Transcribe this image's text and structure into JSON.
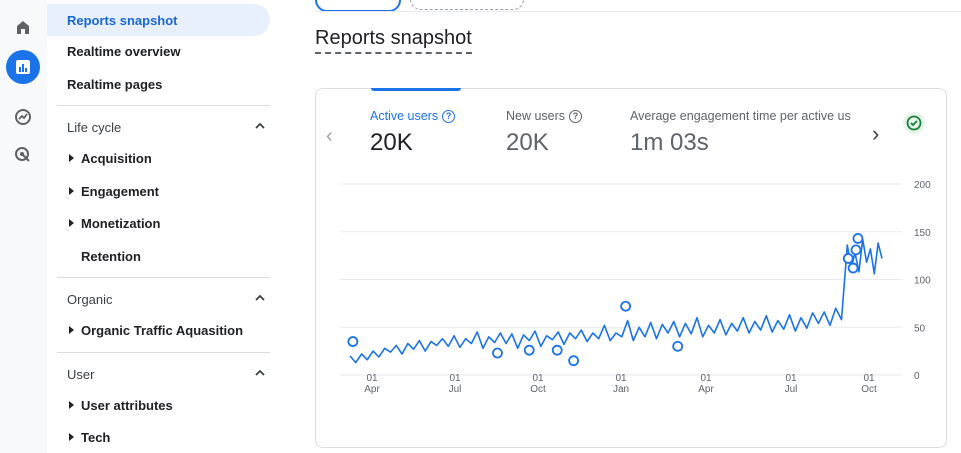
{
  "rail": {
    "items": [
      {
        "icon": "home-icon"
      },
      {
        "icon": "reports-icon",
        "active": true
      },
      {
        "icon": "explore-icon"
      },
      {
        "icon": "advertising-icon"
      }
    ]
  },
  "nav": {
    "reports_snapshot": "Reports snapshot",
    "realtime_overview": "Realtime overview",
    "realtime_pages": "Realtime pages",
    "lifecycle": {
      "title": "Life cycle",
      "items": [
        "Acquisition",
        "Engagement",
        "Monetization",
        "Retention"
      ]
    },
    "organic": {
      "title": "Organic",
      "items": [
        "Organic Traffic Aquasition"
      ]
    },
    "user": {
      "title": "User",
      "items": [
        "User attributes",
        "Tech"
      ]
    }
  },
  "page": {
    "title": "Reports snapshot"
  },
  "card": {
    "metrics": [
      {
        "label": "Active users",
        "value": "20K",
        "active": true
      },
      {
        "label": "New users",
        "value": "20K",
        "active": false
      },
      {
        "label": "Average engagement time per active us",
        "value": "1m 03s",
        "active": false
      }
    ],
    "help_glyph": "?",
    "prev_arrow": "‹",
    "next_arrow": "›",
    "status_color": "#188038"
  },
  "chart_data": {
    "type": "line",
    "x_ticks": [
      {
        "day": "01",
        "month": "Apr"
      },
      {
        "day": "01",
        "month": "Jul"
      },
      {
        "day": "01",
        "month": "Oct"
      },
      {
        "day": "01",
        "month": "Jan"
      },
      {
        "day": "01",
        "month": "Apr"
      },
      {
        "day": "01",
        "month": "Jul"
      },
      {
        "day": "01",
        "month": "Oct"
      }
    ],
    "y_ticks": [
      0,
      50,
      100,
      150,
      200
    ],
    "ylim": [
      0,
      200
    ],
    "grid": true,
    "series": [
      {
        "color": "#1a73e8",
        "points": [
          [
            0,
            20
          ],
          [
            6,
            13
          ],
          [
            12,
            22
          ],
          [
            18,
            16
          ],
          [
            24,
            25
          ],
          [
            30,
            19
          ],
          [
            36,
            28
          ],
          [
            42,
            24
          ],
          [
            48,
            31
          ],
          [
            54,
            22
          ],
          [
            60,
            33
          ],
          [
            66,
            27
          ],
          [
            72,
            36
          ],
          [
            78,
            25
          ],
          [
            84,
            35
          ],
          [
            90,
            31
          ],
          [
            96,
            38
          ],
          [
            102,
            30
          ],
          [
            108,
            41
          ],
          [
            114,
            29
          ],
          [
            120,
            38
          ],
          [
            126,
            33
          ],
          [
            132,
            45
          ],
          [
            138,
            28
          ],
          [
            144,
            40
          ],
          [
            150,
            34
          ],
          [
            156,
            44
          ],
          [
            162,
            33
          ],
          [
            168,
            43
          ],
          [
            174,
            28
          ],
          [
            180,
            42
          ],
          [
            186,
            36
          ],
          [
            192,
            46
          ],
          [
            198,
            30
          ],
          [
            204,
            41
          ],
          [
            210,
            37
          ],
          [
            216,
            45
          ],
          [
            222,
            32
          ],
          [
            228,
            44
          ],
          [
            234,
            38
          ],
          [
            240,
            47
          ],
          [
            246,
            35
          ],
          [
            252,
            44
          ],
          [
            258,
            38
          ],
          [
            264,
            52
          ],
          [
            270,
            36
          ],
          [
            276,
            44
          ],
          [
            282,
            40
          ],
          [
            288,
            57
          ],
          [
            294,
            36
          ],
          [
            300,
            50
          ],
          [
            306,
            40
          ],
          [
            312,
            55
          ],
          [
            318,
            38
          ],
          [
            324,
            53
          ],
          [
            330,
            44
          ],
          [
            336,
            56
          ],
          [
            342,
            40
          ],
          [
            348,
            54
          ],
          [
            354,
            43
          ],
          [
            360,
            60
          ],
          [
            366,
            40
          ],
          [
            372,
            52
          ],
          [
            378,
            44
          ],
          [
            384,
            58
          ],
          [
            390,
            42
          ],
          [
            396,
            54
          ],
          [
            402,
            46
          ],
          [
            408,
            60
          ],
          [
            414,
            44
          ],
          [
            420,
            56
          ],
          [
            426,
            47
          ],
          [
            432,
            62
          ],
          [
            438,
            45
          ],
          [
            444,
            57
          ],
          [
            450,
            48
          ],
          [
            456,
            63
          ],
          [
            462,
            46
          ],
          [
            468,
            60
          ],
          [
            474,
            49
          ],
          [
            480,
            65
          ],
          [
            486,
            54
          ],
          [
            492,
            66
          ],
          [
            498,
            52
          ],
          [
            504,
            70
          ],
          [
            510,
            58
          ],
          [
            516,
            136
          ],
          [
            520,
            112
          ],
          [
            524,
            128
          ],
          [
            528,
            108
          ],
          [
            532,
            142
          ],
          [
            536,
            118
          ],
          [
            540,
            132
          ],
          [
            544,
            106
          ],
          [
            548,
            138
          ],
          [
            552,
            122
          ]
        ],
        "markers": [
          [
            3,
            35
          ],
          [
            153,
            23
          ],
          [
            186,
            26
          ],
          [
            215,
            26
          ],
          [
            232,
            15
          ],
          [
            286,
            72
          ],
          [
            340,
            30
          ],
          [
            517,
            122
          ],
          [
            522,
            112
          ],
          [
            525,
            131
          ],
          [
            527,
            143
          ]
        ]
      }
    ],
    "x_range": [
      0,
      552
    ]
  }
}
